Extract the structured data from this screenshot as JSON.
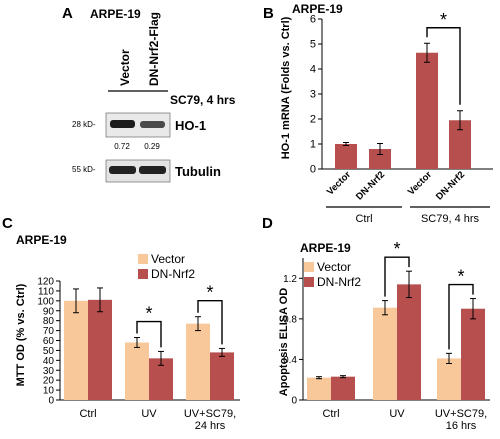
{
  "panels": {
    "A": {
      "letter": "A",
      "cell_line": "ARPE-19",
      "lane_labels": [
        "Vector",
        "DN-Nrf2-Flag"
      ],
      "treatment": "SC79, 4 hrs",
      "bands": [
        {
          "marker": "28 kD-",
          "name": "HO-1",
          "quant": [
            "0.72",
            "0.29"
          ]
        },
        {
          "marker": "55 kD-",
          "name": "Tubulin"
        }
      ]
    }
  },
  "chart_data": [
    {
      "panel": "B",
      "type": "bar",
      "title": "ARPE-19",
      "ylabel": "HO-1 mRNA (Folds vs. Ctrl)",
      "ylim": [
        0,
        6
      ],
      "yticks": [
        0,
        1,
        2,
        3,
        4,
        5,
        6
      ],
      "categories": [
        "Vector",
        "DN-Nrf2",
        "Vector",
        "DN-Nrf2"
      ],
      "values": [
        1.0,
        0.8,
        4.65,
        1.95
      ],
      "errors": [
        0.06,
        0.22,
        0.38,
        0.38
      ],
      "colors": [
        "#b84f4f",
        "#b84f4f",
        "#b84f4f",
        "#b84f4f"
      ],
      "groups": [
        "Ctrl",
        "SC79, 4 hrs"
      ],
      "significance": "*",
      "grid": false
    },
    {
      "panel": "C",
      "type": "bar",
      "title": "ARPE-19",
      "ylabel": "MTT OD (% vs. Ctrl)",
      "ylim": [
        0,
        120
      ],
      "yticks": [
        0,
        10,
        20,
        30,
        40,
        50,
        60,
        70,
        80,
        90,
        100,
        110,
        120
      ],
      "categories": [
        "Ctrl",
        "UV",
        "UV+SC79,\n24 hrs"
      ],
      "series": [
        {
          "name": "Vector",
          "color": "#f8c79a",
          "values": [
            100,
            58,
            77
          ],
          "errors": [
            12,
            5,
            7
          ]
        },
        {
          "name": "DN-Nrf2",
          "color": "#b84f4f",
          "values": [
            101,
            42,
            48
          ],
          "errors": [
            12,
            7,
            4
          ]
        }
      ],
      "significance": "*",
      "legend": "top-center",
      "grid": false
    },
    {
      "panel": "D",
      "type": "bar",
      "title": "ARPE-19",
      "ylabel": "Apoptosis ELISA OD",
      "ylim": [
        0,
        1.4
      ],
      "yticks": [
        0,
        0.4,
        0.8,
        1.2
      ],
      "categories": [
        "Ctrl",
        "UV",
        "UV+SC79,\n16 hrs"
      ],
      "series": [
        {
          "name": "Vector",
          "color": "#f8c79a",
          "values": [
            0.22,
            0.91,
            0.41
          ],
          "errors": [
            0.01,
            0.07,
            0.05
          ]
        },
        {
          "name": "DN-Nrf2",
          "color": "#b84f4f",
          "values": [
            0.23,
            1.14,
            0.9
          ],
          "errors": [
            0.01,
            0.13,
            0.1
          ]
        }
      ],
      "significance": "*",
      "legend": "top-left",
      "grid": false
    }
  ]
}
